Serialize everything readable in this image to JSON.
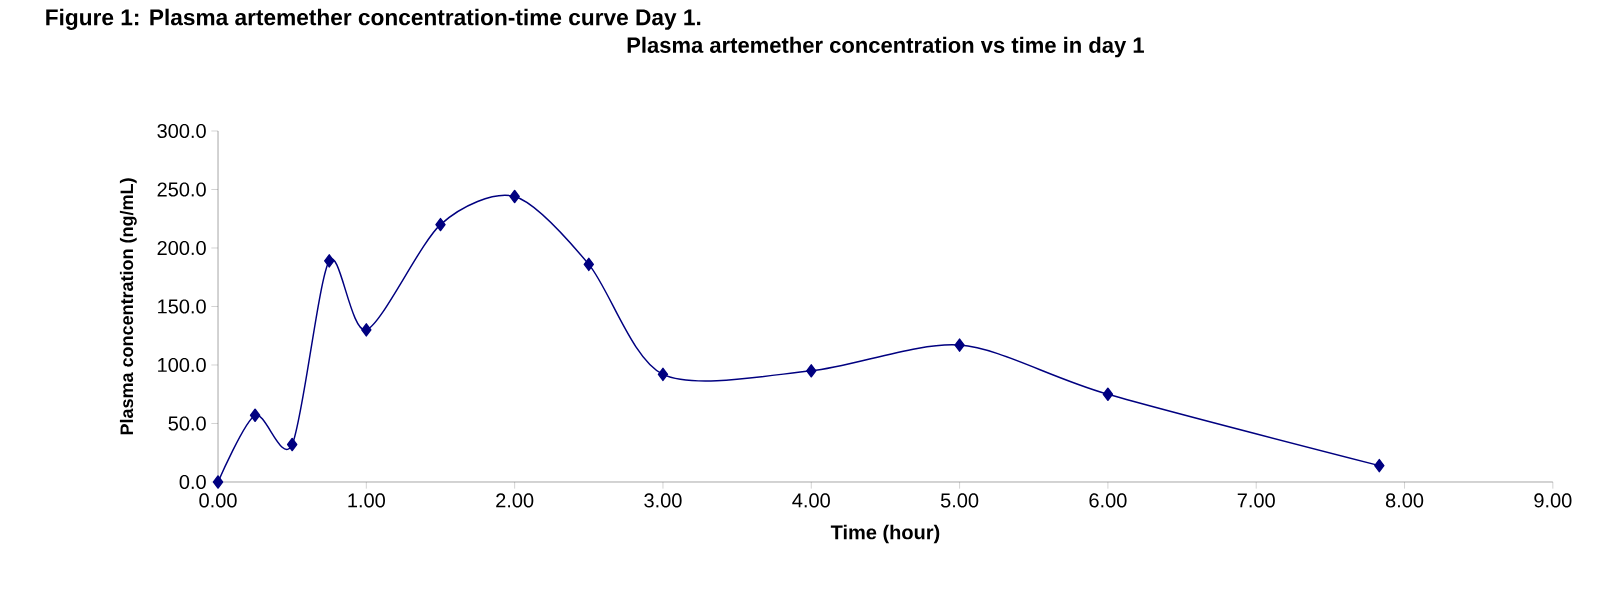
{
  "chart_data": {
    "type": "line",
    "title": "Plasma artemether concentration vs time in day 1",
    "xlabel": "Time (hour)",
    "ylabel": "Plasma concentration (ng/mL)",
    "annotations": [
      "Figure 1: Plasma artemether concentration-time curve Day 1."
    ],
    "x": [
      0,
      0.25,
      0.5,
      0.75,
      1,
      1.5,
      2,
      2.5,
      3,
      4,
      5,
      6,
      7.83
    ],
    "series": [
      {
        "color": "#000080",
        "values": [
          0,
          57,
          32,
          189,
          130,
          220,
          244,
          186,
          92,
          95,
          117,
          75,
          14
        ]
      }
    ],
    "xlim": [
      0,
      9
    ],
    "xticks": [
      {
        "value": 0,
        "label": "0.00"
      },
      {
        "value": 1,
        "label": "1.00"
      },
      {
        "value": 2,
        "label": "2.00"
      },
      {
        "value": 3,
        "label": "3.00"
      },
      {
        "value": 4,
        "label": "4.00"
      },
      {
        "value": 5,
        "label": "5.00"
      },
      {
        "value": 6,
        "label": "6.00"
      },
      {
        "value": 7,
        "label": "7.00"
      },
      {
        "value": 8,
        "label": "8.00"
      },
      {
        "value": 9,
        "label": "9.00"
      }
    ],
    "ylim": [
      0,
      300
    ],
    "yticks": [
      {
        "value": 0,
        "label": "0.0"
      },
      {
        "value": 50,
        "label": "50.0"
      },
      {
        "value": 100,
        "label": "100.0"
      },
      {
        "value": 150,
        "label": "150.0"
      },
      {
        "value": 200,
        "label": "200.0"
      },
      {
        "value": 250,
        "label": "250.0"
      },
      {
        "value": 300,
        "label": "300.0"
      }
    ],
    "grid": false,
    "marker": "diamond",
    "line_style": "solid"
  }
}
